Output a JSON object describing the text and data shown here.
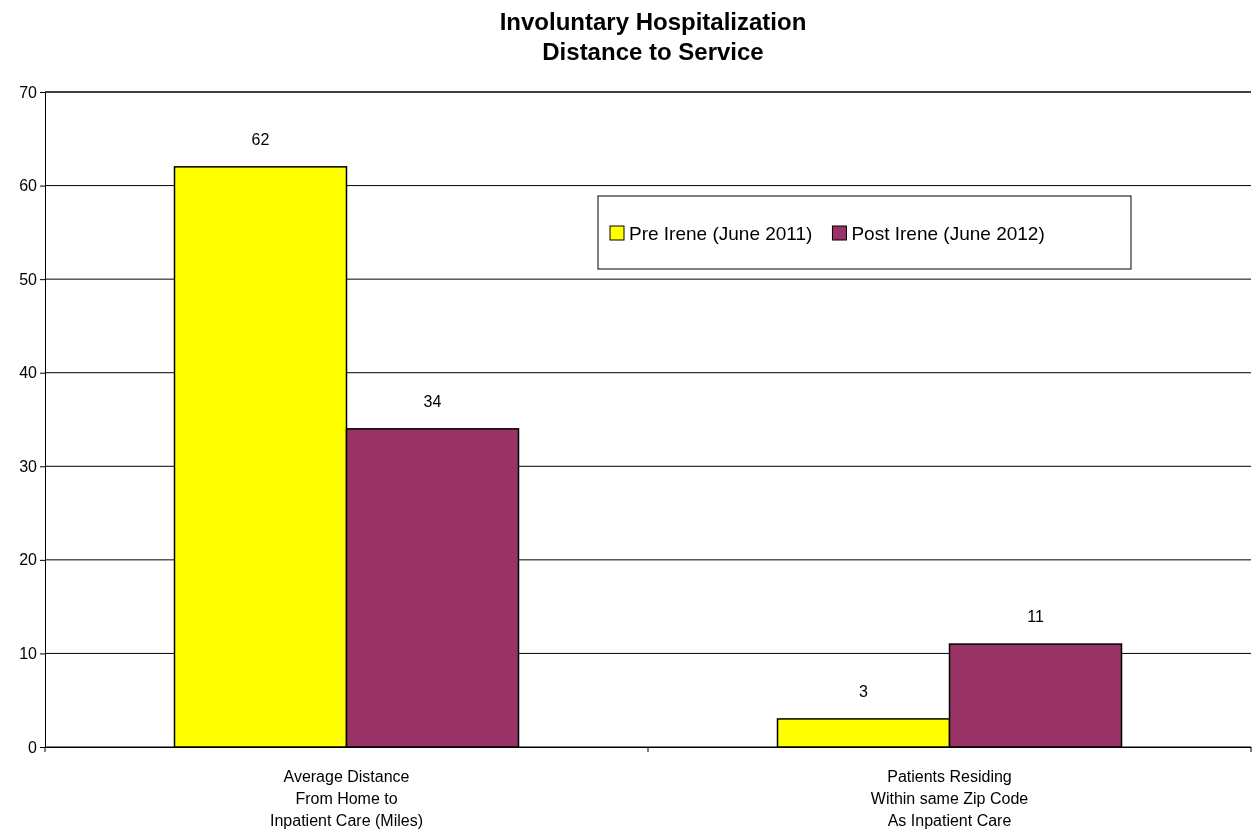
{
  "chart_data": {
    "type": "bar",
    "title": "Involuntary Hospitalization\nDistance to Service",
    "categories": [
      "Average Distance\nFrom Home to\nInpatient Care (Miles)",
      "Patients Residing\nWithin same Zip Code\nAs Inpatient Care"
    ],
    "series": [
      {
        "name": "Pre Irene (June 2011)",
        "color": "#ffff00",
        "values": [
          62,
          3
        ]
      },
      {
        "name": "Post Irene (June 2012)",
        "color": "#993366",
        "values": [
          34,
          11
        ]
      }
    ],
    "ylim": [
      0,
      70
    ],
    "yticks": [
      0,
      10,
      20,
      30,
      40,
      50,
      60,
      70
    ],
    "grid": "y",
    "legend": "top right",
    "data_labels": true
  }
}
